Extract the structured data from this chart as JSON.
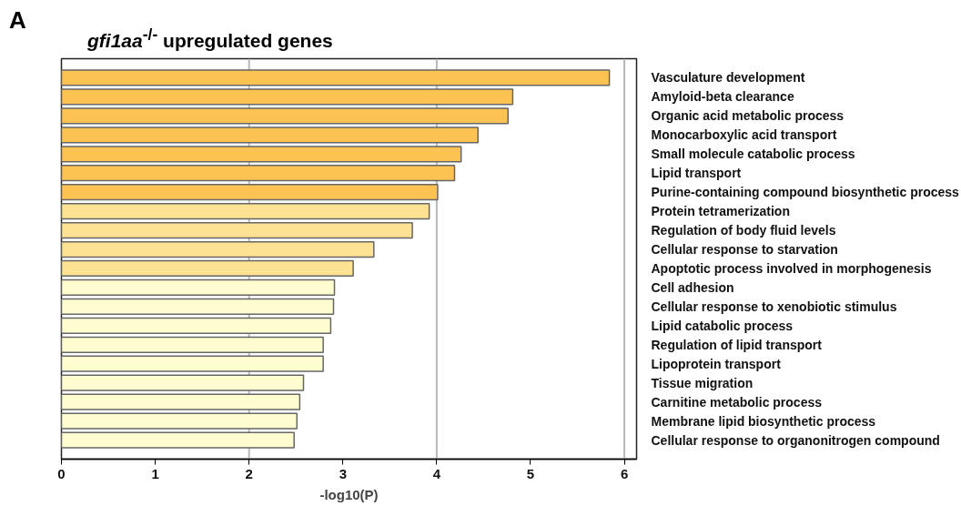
{
  "chart_data": {
    "type": "bar",
    "orientation": "horizontal",
    "title": "gfi1aa$^{-/-}$ upregulated genes",
    "annotations": [
      "A"
    ],
    "xlabel": "-log10(P)",
    "categories": [
      "Vasculature development",
      "Amyloid-beta clearance",
      "Organic acid metabolic process",
      "Monocarboxylic acid transport",
      "Small molecule catabolic process",
      "Lipid transport",
      "Purine-containing compound biosynthetic process",
      "Protein tetramerization",
      "Regulation of body fluid levels",
      "Cellular response to starvation",
      "Apoptotic process involved in morphogenesis",
      "Cell adhesion",
      "Cellular response to xenobiotic stimulus",
      "Lipid catabolic process",
      "Regulation of lipid transport",
      "Lipoprotein transport",
      "Tissue migration",
      "Carnitine metabolic process",
      "Membrane lipid biosynthetic process",
      "Cellular response to organonitrogen compound"
    ],
    "values": [
      5.84,
      4.81,
      4.76,
      4.44,
      4.26,
      4.19,
      4.01,
      3.92,
      3.74,
      3.33,
      3.11,
      2.91,
      2.9,
      2.87,
      2.79,
      2.79,
      2.58,
      2.54,
      2.51,
      2.48
    ],
    "colors": [
      "#fcc352",
      "#fcc352",
      "#fcc352",
      "#fcc352",
      "#fcc352",
      "#fcc352",
      "#fcc352",
      "#fde293",
      "#fde293",
      "#fde293",
      "#fde293",
      "#fefdd0",
      "#fefdd0",
      "#fefdd0",
      "#fefdd0",
      "#fefdd0",
      "#fefdd0",
      "#fefdd0",
      "#fefdd0",
      "#fefdd0"
    ],
    "xlim": [
      0,
      6.13
    ],
    "xticks": [
      0,
      1,
      2,
      3,
      4,
      5,
      6
    ],
    "ref_lines": [
      {
        "axis": "x",
        "value": 2,
        "color": "#b8b8b8"
      },
      {
        "axis": "x",
        "value": 4,
        "color": "#b8b8b8"
      },
      {
        "axis": "x",
        "value": 6,
        "color": "#b8b8b8"
      }
    ]
  }
}
